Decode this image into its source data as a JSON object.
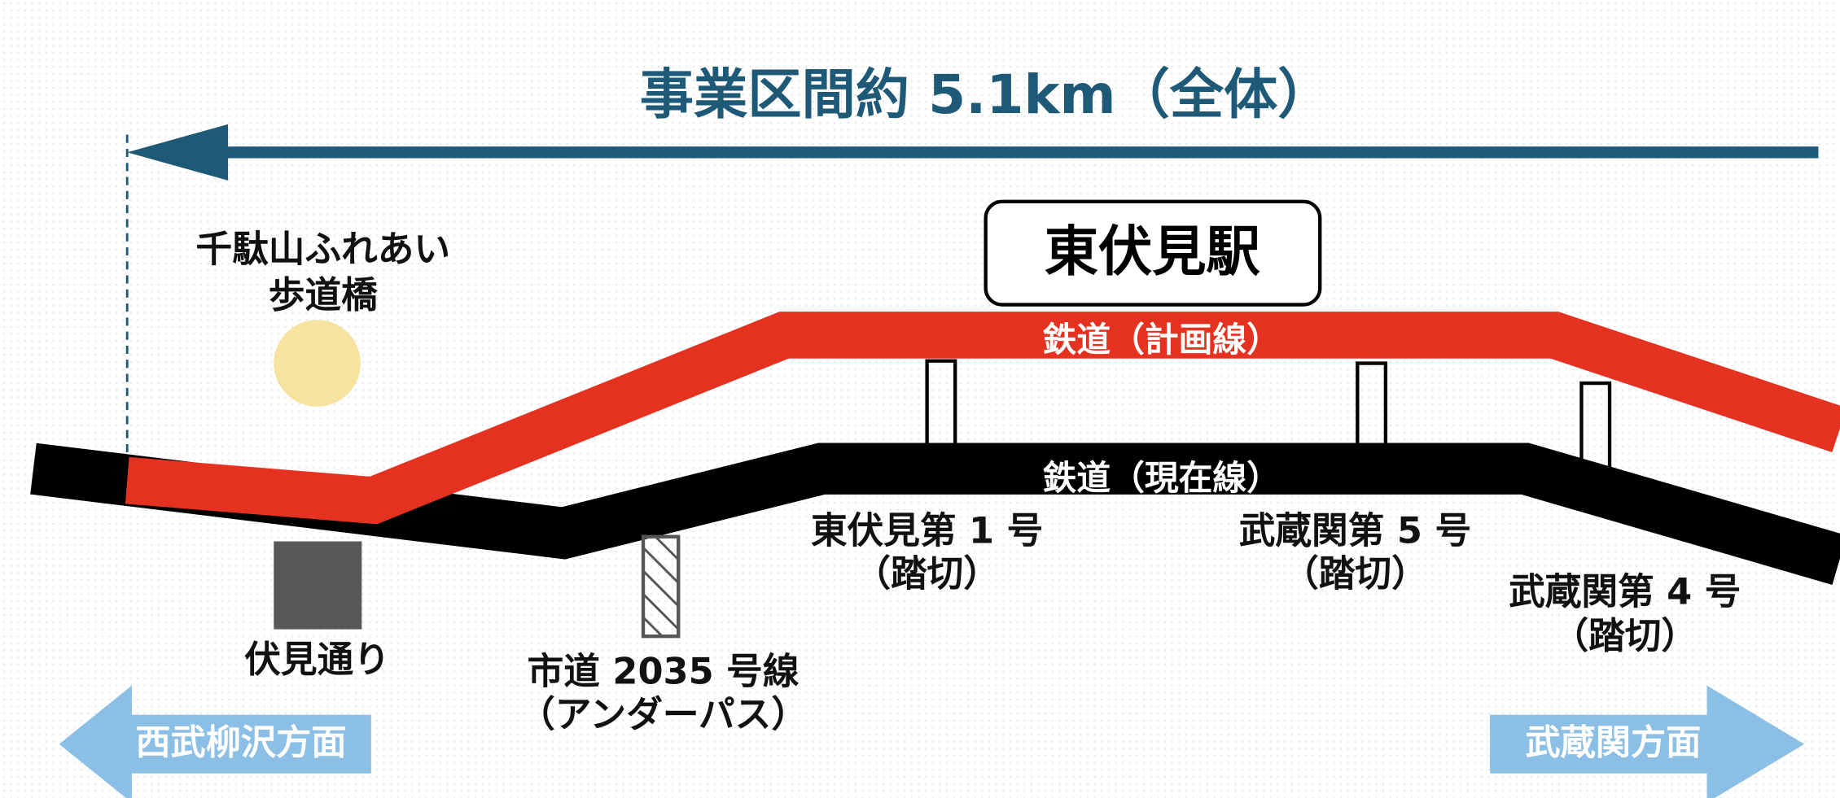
{
  "header": {
    "title": "事業区間約 5.1km（全体）"
  },
  "station": {
    "label": "東伏見駅"
  },
  "lines": {
    "planned": "鉄道（計画線）",
    "current": "鉄道（現在線）"
  },
  "labels": {
    "bridge": [
      "千駄山ふれあい",
      "歩道橋"
    ],
    "road": "伏見通り",
    "underpass": [
      "市道 2035 号線",
      "（アンダーパス）"
    ],
    "crossing1": [
      "東伏見第 1 号",
      "（踏切）"
    ],
    "crossing5": [
      "武蔵関第 5 号",
      "（踏切）"
    ],
    "crossing4": [
      "武蔵関第 4 号",
      "（踏切）"
    ]
  },
  "directions": {
    "left": "西武柳沢方面",
    "right": "武蔵関方面"
  }
}
